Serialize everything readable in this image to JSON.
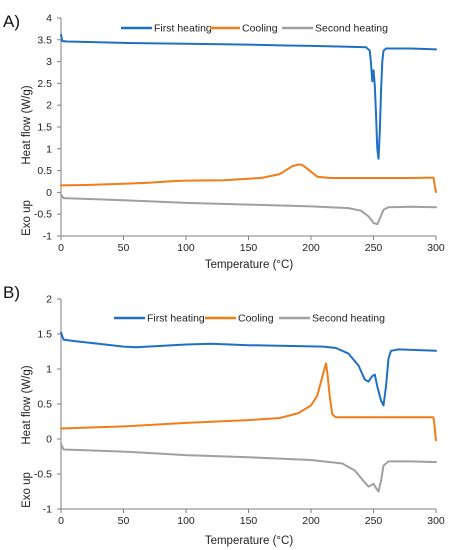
{
  "chart_data": [
    {
      "type": "line",
      "panel_label": "A)",
      "xlabel": "Temperature (°C)",
      "ylabel": "Heat flow (W/g)",
      "y_side_label": "Exo up",
      "xlim": [
        0,
        300
      ],
      "ylim": [
        -1,
        4
      ],
      "xticks": [
        0,
        50,
        100,
        150,
        200,
        250,
        300
      ],
      "yticks": [
        -1,
        -0.5,
        0,
        0.5,
        1,
        1.5,
        2,
        2.5,
        3,
        3.5,
        4
      ],
      "legend_position": "top",
      "grid": false,
      "series": [
        {
          "name": "First heating",
          "color": "#1f6fc5",
          "points": [
            [
              0,
              3.62
            ],
            [
              1,
              3.47
            ],
            [
              5,
              3.46
            ],
            [
              50,
              3.43
            ],
            [
              100,
              3.41
            ],
            [
              150,
              3.39
            ],
            [
              180,
              3.37
            ],
            [
              200,
              3.36
            ],
            [
              230,
              3.34
            ],
            [
              244,
              3.33
            ],
            [
              247,
              3.25
            ],
            [
              248,
              2.95
            ],
            [
              249,
              2.55
            ],
            [
              250,
              2.8
            ],
            [
              251,
              2.45
            ],
            [
              252,
              1.8
            ],
            [
              253,
              1.0
            ],
            [
              254,
              0.77
            ],
            [
              255,
              1.4
            ],
            [
              256,
              2.3
            ],
            [
              257,
              3.0
            ],
            [
              258,
              3.25
            ],
            [
              260,
              3.3
            ],
            [
              280,
              3.3
            ],
            [
              300,
              3.28
            ]
          ]
        },
        {
          "name": "Cooling",
          "color": "#f07d1a",
          "points": [
            [
              0,
              0.16
            ],
            [
              20,
              0.17
            ],
            [
              50,
              0.2
            ],
            [
              70,
              0.22
            ],
            [
              90,
              0.26
            ],
            [
              100,
              0.27
            ],
            [
              130,
              0.28
            ],
            [
              160,
              0.33
            ],
            [
              175,
              0.42
            ],
            [
              185,
              0.6
            ],
            [
              190,
              0.64
            ],
            [
              193,
              0.63
            ],
            [
              198,
              0.52
            ],
            [
              205,
              0.36
            ],
            [
              215,
              0.33
            ],
            [
              250,
              0.33
            ],
            [
              280,
              0.33
            ],
            [
              298,
              0.34
            ],
            [
              299,
              0.15
            ],
            [
              300,
              0.01
            ]
          ]
        },
        {
          "name": "Second heating",
          "color": "#a0a0a0",
          "points": [
            [
              0,
              -0.05
            ],
            [
              2,
              -0.13
            ],
            [
              20,
              -0.15
            ],
            [
              50,
              -0.18
            ],
            [
              100,
              -0.24
            ],
            [
              150,
              -0.28
            ],
            [
              200,
              -0.32
            ],
            [
              230,
              -0.36
            ],
            [
              240,
              -0.42
            ],
            [
              246,
              -0.55
            ],
            [
              250,
              -0.7
            ],
            [
              253,
              -0.73
            ],
            [
              255,
              -0.6
            ],
            [
              258,
              -0.4
            ],
            [
              262,
              -0.34
            ],
            [
              280,
              -0.33
            ],
            [
              300,
              -0.34
            ]
          ]
        }
      ]
    },
    {
      "type": "line",
      "panel_label": "B)",
      "xlabel": "Temperature (°C)",
      "ylabel": "Heat flow (W/g)",
      "y_side_label": "Exo up",
      "xlim": [
        0,
        300
      ],
      "ylim": [
        -1,
        2
      ],
      "xticks": [
        0,
        50,
        100,
        150,
        200,
        250,
        300
      ],
      "yticks": [
        -1,
        -0.5,
        0,
        0.5,
        1,
        1.5,
        2
      ],
      "legend_position": "top",
      "grid": false,
      "series": [
        {
          "name": "First heating",
          "color": "#1f6fc5",
          "points": [
            [
              0,
              1.52
            ],
            [
              2,
              1.42
            ],
            [
              10,
              1.4
            ],
            [
              30,
              1.36
            ],
            [
              50,
              1.32
            ],
            [
              60,
              1.31
            ],
            [
              80,
              1.33
            ],
            [
              100,
              1.35
            ],
            [
              120,
              1.36
            ],
            [
              150,
              1.34
            ],
            [
              180,
              1.33
            ],
            [
              210,
              1.32
            ],
            [
              220,
              1.3
            ],
            [
              230,
              1.22
            ],
            [
              238,
              1.05
            ],
            [
              243,
              0.85
            ],
            [
              246,
              0.82
            ],
            [
              249,
              0.9
            ],
            [
              251,
              0.92
            ],
            [
              253,
              0.75
            ],
            [
              256,
              0.55
            ],
            [
              258,
              0.48
            ],
            [
              260,
              0.75
            ],
            [
              262,
              1.15
            ],
            [
              264,
              1.26
            ],
            [
              270,
              1.28
            ],
            [
              300,
              1.26
            ]
          ]
        },
        {
          "name": "Cooling",
          "color": "#f07d1a",
          "points": [
            [
              0,
              0.15
            ],
            [
              50,
              0.18
            ],
            [
              100,
              0.23
            ],
            [
              150,
              0.27
            ],
            [
              175,
              0.3
            ],
            [
              190,
              0.37
            ],
            [
              200,
              0.48
            ],
            [
              205,
              0.62
            ],
            [
              208,
              0.82
            ],
            [
              211,
              1.02
            ],
            [
              212,
              1.08
            ],
            [
              213,
              0.95
            ],
            [
              215,
              0.6
            ],
            [
              217,
              0.35
            ],
            [
              220,
              0.31
            ],
            [
              260,
              0.31
            ],
            [
              298,
              0.31
            ],
            [
              299,
              0.15
            ],
            [
              300,
              -0.02
            ]
          ]
        },
        {
          "name": "Second heating",
          "color": "#a0a0a0",
          "points": [
            [
              0,
              -0.07
            ],
            [
              2,
              -0.15
            ],
            [
              20,
              -0.16
            ],
            [
              50,
              -0.18
            ],
            [
              100,
              -0.23
            ],
            [
              150,
              -0.26
            ],
            [
              200,
              -0.3
            ],
            [
              225,
              -0.35
            ],
            [
              235,
              -0.45
            ],
            [
              242,
              -0.6
            ],
            [
              246,
              -0.68
            ],
            [
              248,
              -0.66
            ],
            [
              250,
              -0.64
            ],
            [
              252,
              -0.7
            ],
            [
              254,
              -0.75
            ],
            [
              256,
              -0.6
            ],
            [
              258,
              -0.38
            ],
            [
              262,
              -0.32
            ],
            [
              280,
              -0.32
            ],
            [
              300,
              -0.33
            ]
          ]
        }
      ]
    }
  ]
}
